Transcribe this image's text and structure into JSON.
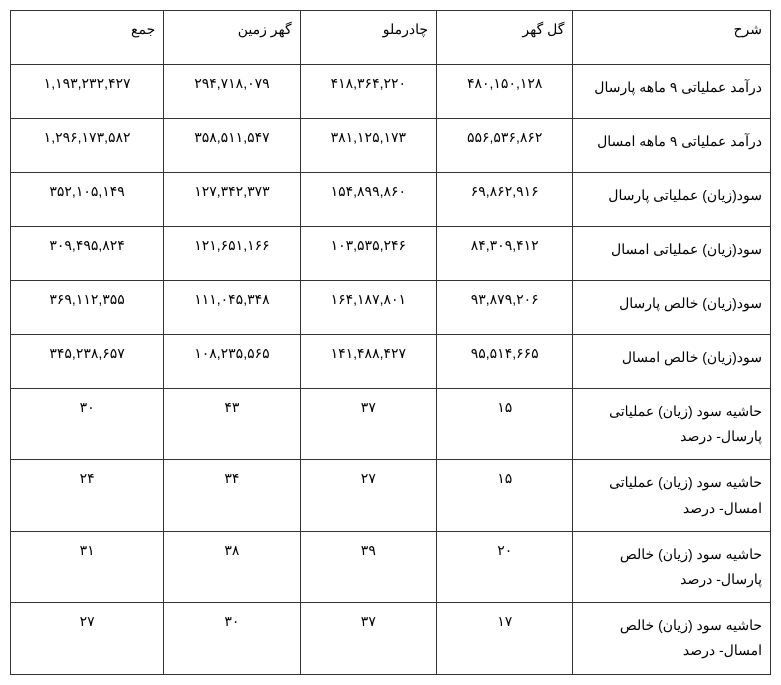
{
  "table": {
    "columns": [
      "شرح",
      "گل گهر",
      "چادرملو",
      "گهر زمین",
      "جمع"
    ],
    "column_widths": [
      "26%",
      "18.5%",
      "18.5%",
      "18.5%",
      "18.5%"
    ],
    "rows": [
      {
        "desc": "درآمد عملیاتی ۹ ماهه پارسال",
        "c1": "۴۸۰,۱۵۰,۱۲۸",
        "c2": "۴۱۸,۳۶۴,۲۲۰",
        "c3": "۲۹۴,۷۱۸,۰۷۹",
        "c4": "۱,۱۹۳,۲۳۲,۴۲۷"
      },
      {
        "desc": "درآمد عملیاتی ۹ ماهه امسال",
        "c1": "۵۵۶,۵۳۶,۸۶۲",
        "c2": "۳۸۱,۱۲۵,۱۷۳",
        "c3": "۳۵۸,۵۱۱,۵۴۷",
        "c4": "۱,۲۹۶,۱۷۳,۵۸۲"
      },
      {
        "desc": "سود(زیان) عملیاتی پارسال",
        "c1": "۶۹,۸۶۲,۹۱۶",
        "c2": "۱۵۴,۸۹۹,۸۶۰",
        "c3": "۱۲۷,۳۴۲,۳۷۳",
        "c4": "۳۵۲,۱۰۵,۱۴۹"
      },
      {
        "desc": "سود(زیان) عملیاتی امسال",
        "c1": "۸۴,۳۰۹,۴۱۲",
        "c2": "۱۰۳,۵۳۵,۲۴۶",
        "c3": "۱۲۱,۶۵۱,۱۶۶",
        "c4": "۳۰۹,۴۹۵,۸۲۴"
      },
      {
        "desc": "سود(زیان) خالص پارسال",
        "c1": "۹۳,۸۷۹,۲۰۶",
        "c2": "۱۶۴,۱۸۷,۸۰۱",
        "c3": "۱۱۱,۰۴۵,۳۴۸",
        "c4": "۳۶۹,۱۱۲,۳۵۵"
      },
      {
        "desc": "سود(زیان) خالص امسال",
        "c1": "۹۵,۵۱۴,۶۶۵",
        "c2": "۱۴۱,۴۸۸,۴۲۷",
        "c3": "۱۰۸,۲۳۵,۵۶۵",
        "c4": "۳۴۵,۲۳۸,۶۵۷"
      },
      {
        "desc": "حاشیه سود (زیان) عملیاتی پارسال- درصد",
        "c1": "۱۵",
        "c2": "۳۷",
        "c3": "۴۳",
        "c4": "۳۰"
      },
      {
        "desc": "حاشیه سود (زیان) عملیاتی امسال- درصد",
        "c1": "۱۵",
        "c2": "۲۷",
        "c3": "۳۴",
        "c4": "۲۴"
      },
      {
        "desc": "حاشیه سود (زیان) خالص پارسال- درصد",
        "c1": "۲۰",
        "c2": "۳۹",
        "c3": "۳۸",
        "c4": "۳۱"
      },
      {
        "desc": "حاشیه سود (زیان) خالص امسال- درصد",
        "c1": "۱۷",
        "c2": "۳۷",
        "c3": "۳۰",
        "c4": "۲۷"
      }
    ],
    "border_color": "#333333",
    "background_color": "#ffffff",
    "font_size": 14
  }
}
